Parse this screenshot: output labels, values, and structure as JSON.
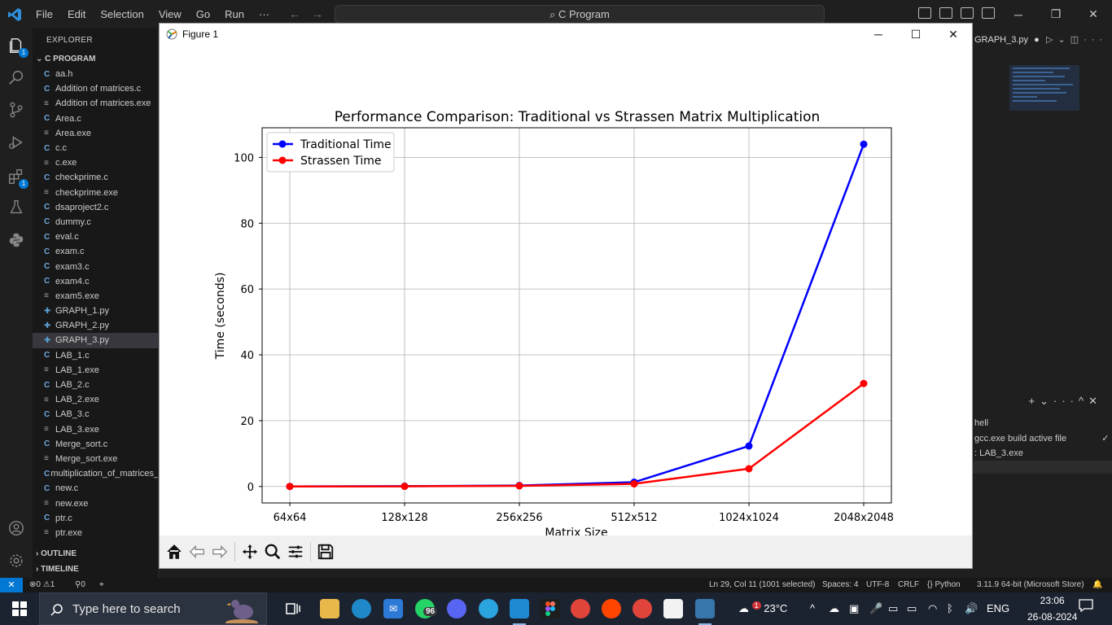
{
  "vscode": {
    "menu": [
      "File",
      "Edit",
      "Selection",
      "View",
      "Go",
      "Run",
      "···"
    ],
    "search_text": "C Program",
    "explorer_title": "EXPLORER",
    "project_title": "C PROGRAM",
    "files": [
      {
        "name": "aa.h",
        "type": "c"
      },
      {
        "name": "Addition of matrices.c",
        "type": "c"
      },
      {
        "name": "Addition of matrices.exe",
        "type": "exe"
      },
      {
        "name": "Area.c",
        "type": "c"
      },
      {
        "name": "Area.exe",
        "type": "exe"
      },
      {
        "name": "c.c",
        "type": "c"
      },
      {
        "name": "c.exe",
        "type": "exe"
      },
      {
        "name": "checkprime.c",
        "type": "c"
      },
      {
        "name": "checkprime.exe",
        "type": "exe"
      },
      {
        "name": "dsaproject2.c",
        "type": "c"
      },
      {
        "name": "dummy.c",
        "type": "c"
      },
      {
        "name": "eval.c",
        "type": "c"
      },
      {
        "name": "exam.c",
        "type": "c"
      },
      {
        "name": "exam3.c",
        "type": "c"
      },
      {
        "name": "exam4.c",
        "type": "c"
      },
      {
        "name": "exam5.exe",
        "type": "exe"
      },
      {
        "name": "GRAPH_1.py",
        "type": "py"
      },
      {
        "name": "GRAPH_2.py",
        "type": "py"
      },
      {
        "name": "GRAPH_3.py",
        "type": "py",
        "selected": true
      },
      {
        "name": "LAB_1.c",
        "type": "c"
      },
      {
        "name": "LAB_1.exe",
        "type": "exe"
      },
      {
        "name": "LAB_2.c",
        "type": "c"
      },
      {
        "name": "LAB_2.exe",
        "type": "exe"
      },
      {
        "name": "LAB_3.c",
        "type": "c"
      },
      {
        "name": "LAB_3.exe",
        "type": "exe"
      },
      {
        "name": "Merge_sort.c",
        "type": "c"
      },
      {
        "name": "Merge_sort.exe",
        "type": "exe"
      },
      {
        "name": "multiplication_of_matrices_",
        "type": "c"
      },
      {
        "name": "new.c",
        "type": "c"
      },
      {
        "name": "new.exe",
        "type": "exe"
      },
      {
        "name": "ptr.c",
        "type": "c"
      },
      {
        "name": "ptr.exe",
        "type": "exe"
      }
    ],
    "outline": "OUTLINE",
    "timeline": "TIMELINE",
    "editor_tab": "GRAPH_3.py",
    "terminal_items": [
      "hell",
      "gcc.exe build active file",
      ": LAB_3.exe"
    ],
    "status": {
      "errors": "0",
      "warnings": "1",
      "ports": "0",
      "position": "Ln 29, Col 11 (1001 selected)",
      "spaces": "Spaces: 4",
      "encoding": "UTF-8",
      "eol": "CRLF",
      "language": "Python",
      "interpreter": "3.11.9 64-bit (Microsoft Store)"
    },
    "badges": {
      "explorer": "1",
      "extensions": "1"
    }
  },
  "figure": {
    "window_title": "Figure 1"
  },
  "chart_data": {
    "type": "line",
    "title": "Performance Comparison: Traditional vs Strassen Matrix Multiplication",
    "xlabel": "Matrix Size",
    "ylabel": "Time (seconds)",
    "categories": [
      "64x64",
      "128x128",
      "256x256",
      "512x512",
      "1024x1024",
      "2048x2048"
    ],
    "ylim": [
      -5,
      109
    ],
    "yticks": [
      0,
      20,
      40,
      60,
      80,
      100
    ],
    "grid": true,
    "legend_position": "top-left",
    "series": [
      {
        "name": "Traditional Time",
        "color": "#0000ff",
        "values": [
          0.02,
          0.1,
          0.3,
          1.3,
          12.3,
          104.0
        ]
      },
      {
        "name": "Strassen Time",
        "color": "#ff0000",
        "values": [
          0.01,
          0.05,
          0.2,
          0.8,
          5.4,
          31.3
        ]
      }
    ]
  },
  "taskbar": {
    "search_placeholder": "Type here to search",
    "whatsapp_badge": "96",
    "weather": "23°C",
    "weather_badge": "1",
    "language": "ENG",
    "time": "23:06",
    "date": "26-08-2024"
  }
}
